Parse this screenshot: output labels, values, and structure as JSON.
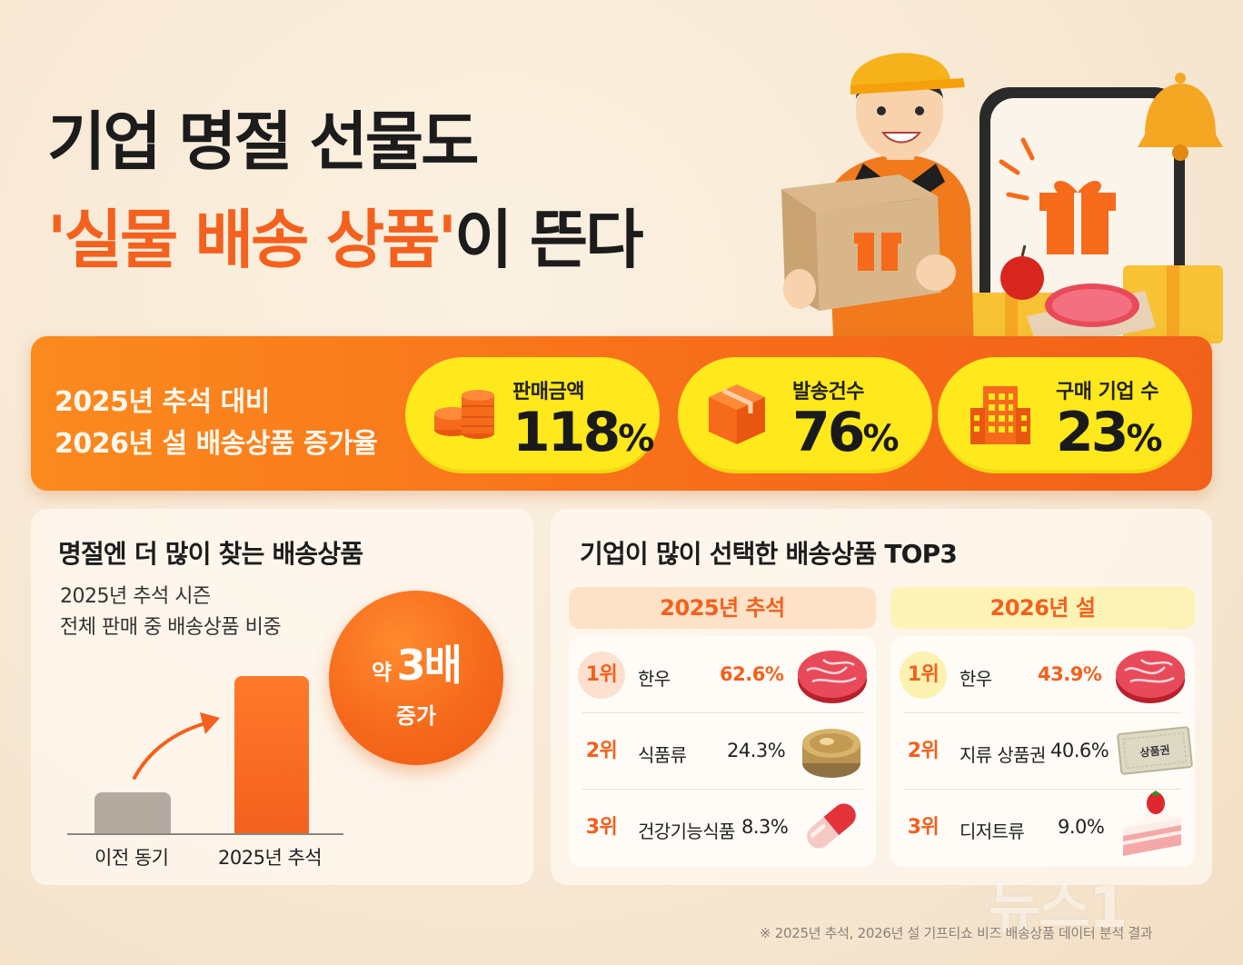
{
  "headline": {
    "line1": "기업 명절 선물도",
    "line2_highlight": "'실물 배송 상품'",
    "line2_rest": "이 뜬다"
  },
  "banner": {
    "label_line1": "2025년 추석 대비",
    "label_line2": "2026년 설 배송상품 증가율",
    "stats": [
      {
        "label": "판매금액",
        "value": "118",
        "unit": "%",
        "icon": "coins-icon"
      },
      {
        "label": "발송건수",
        "value": "76",
        "unit": "%",
        "icon": "parcel-box-icon"
      },
      {
        "label": "구매 기업 수",
        "value": "23",
        "unit": "%",
        "icon": "building-icon"
      }
    ]
  },
  "left_card": {
    "title": "명절엔 더 많이 찾는 배송상품",
    "subtitle_line1": "2025년 추석 시즌",
    "subtitle_line2": "전체 판매 중 배송상품 비중",
    "bubble_prefix": "약",
    "bubble_value": "3배",
    "bubble_suffix": "증가",
    "chart": {
      "type": "bar",
      "categories": [
        "이전 동기",
        "2025년 추석"
      ],
      "relative_level": [
        1,
        3
      ]
    }
  },
  "right_card": {
    "title": "기업이 많이 선택한 배송상품 TOP3",
    "columns": [
      {
        "header": "2025년 추석",
        "rows": [
          {
            "rank": "1위",
            "item": "한우",
            "pct": "62.6%",
            "icon": "beef-steak-icon"
          },
          {
            "rank": "2위",
            "item": "식품류",
            "pct": "24.3%",
            "icon": "canned-food-icon"
          },
          {
            "rank": "3위",
            "item": "건강기능식품",
            "pct": "8.3%",
            "icon": "capsule-pill-icon"
          }
        ]
      },
      {
        "header": "2026년 설",
        "rows": [
          {
            "rank": "1위",
            "item": "한우",
            "pct": "43.9%",
            "icon": "beef-steak-icon"
          },
          {
            "rank": "2위",
            "item": "지류 상품권",
            "pct": "40.6%",
            "icon": "gift-voucher-icon",
            "voucher_text": "상품권"
          },
          {
            "rank": "3위",
            "item": "디저트류",
            "pct": "9.0%",
            "icon": "strawberry-cake-icon"
          }
        ]
      }
    ]
  },
  "footnote": "※ 2025년 추석, 2026년 설 기프티쇼 비즈 배송상품 데이터 분석 결과",
  "watermark": "뉴스1",
  "colors": {
    "accent": "#f4601e",
    "yellow": "#ffe81c",
    "background": "#f6e6d0"
  }
}
